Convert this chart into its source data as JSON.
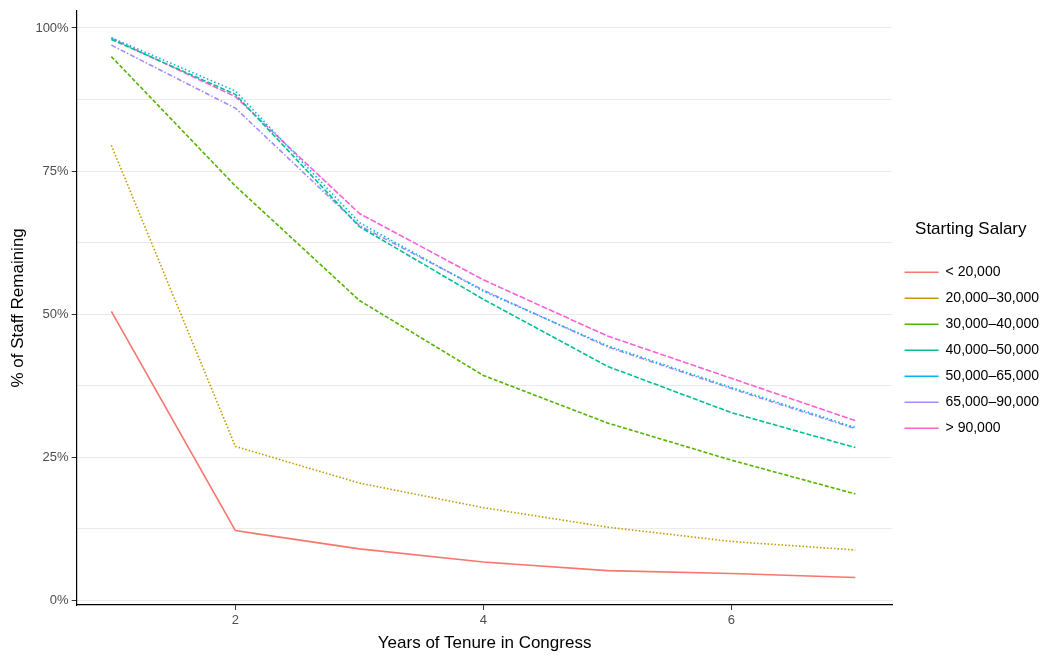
{
  "chart_data": {
    "type": "line",
    "xlabel": "Years of Tenure in Congress",
    "ylabel": "% of Staff Remaining",
    "legend_title": "Starting Salary",
    "legend": "right",
    "grid": "y",
    "marker": "none",
    "x": [
      1,
      2,
      3,
      4,
      5,
      6,
      7
    ],
    "xlim": [
      0.72,
      7.3
    ],
    "xticks": [
      2,
      4,
      6
    ],
    "ylim": [
      -0.8,
      103
    ],
    "yticks": [
      {
        "value": 0,
        "label": "0%"
      },
      {
        "value": 12.5,
        "label": null
      },
      {
        "value": 25,
        "label": "25%"
      },
      {
        "value": 37.5,
        "label": null
      },
      {
        "value": 50,
        "label": "50%"
      },
      {
        "value": 62.5,
        "label": null
      },
      {
        "value": 75,
        "label": "75%"
      },
      {
        "value": 87.5,
        "label": null
      },
      {
        "value": 100,
        "label": "100%"
      }
    ],
    "series": [
      {
        "name": "< 20,000",
        "color": "#f8766d",
        "line_style": "solid",
        "values": [
          50.5,
          12.2,
          9.0,
          6.7,
          5.2,
          4.7,
          4.0
        ]
      },
      {
        "name": "20,000–30,000",
        "color": "#c49a00",
        "line_style": "dotted",
        "values": [
          79.5,
          26.9,
          20.5,
          16.2,
          12.8,
          10.3,
          8.8
        ]
      },
      {
        "name": "30,000–40,000",
        "color": "#53b400",
        "line_style": "dashed",
        "values": [
          95,
          72.4,
          52.4,
          39.3,
          31,
          24.5,
          18.6
        ]
      },
      {
        "name": "40,000–50,000",
        "color": "#00c094",
        "line_style": "dashed",
        "values": [
          98,
          88.4,
          65.3,
          52.6,
          40.9,
          32.8,
          26.7
        ]
      },
      {
        "name": "50,000–65,000",
        "color": "#00b6eb",
        "line_style": "dotted",
        "values": [
          98.3,
          89,
          66,
          54,
          44.5,
          37.2,
          30.2
        ]
      },
      {
        "name": "65,000–90,000",
        "color": "#a58aff",
        "line_style": "dashed",
        "values": [
          97,
          86,
          65.5,
          54.2,
          44.3,
          37,
          30
        ]
      },
      {
        "name": "> 90,000",
        "color": "#fb61d7",
        "line_style": "dashed",
        "values": [
          98.2,
          88,
          67.6,
          56,
          46.2,
          38.8,
          31.4
        ]
      }
    ]
  }
}
